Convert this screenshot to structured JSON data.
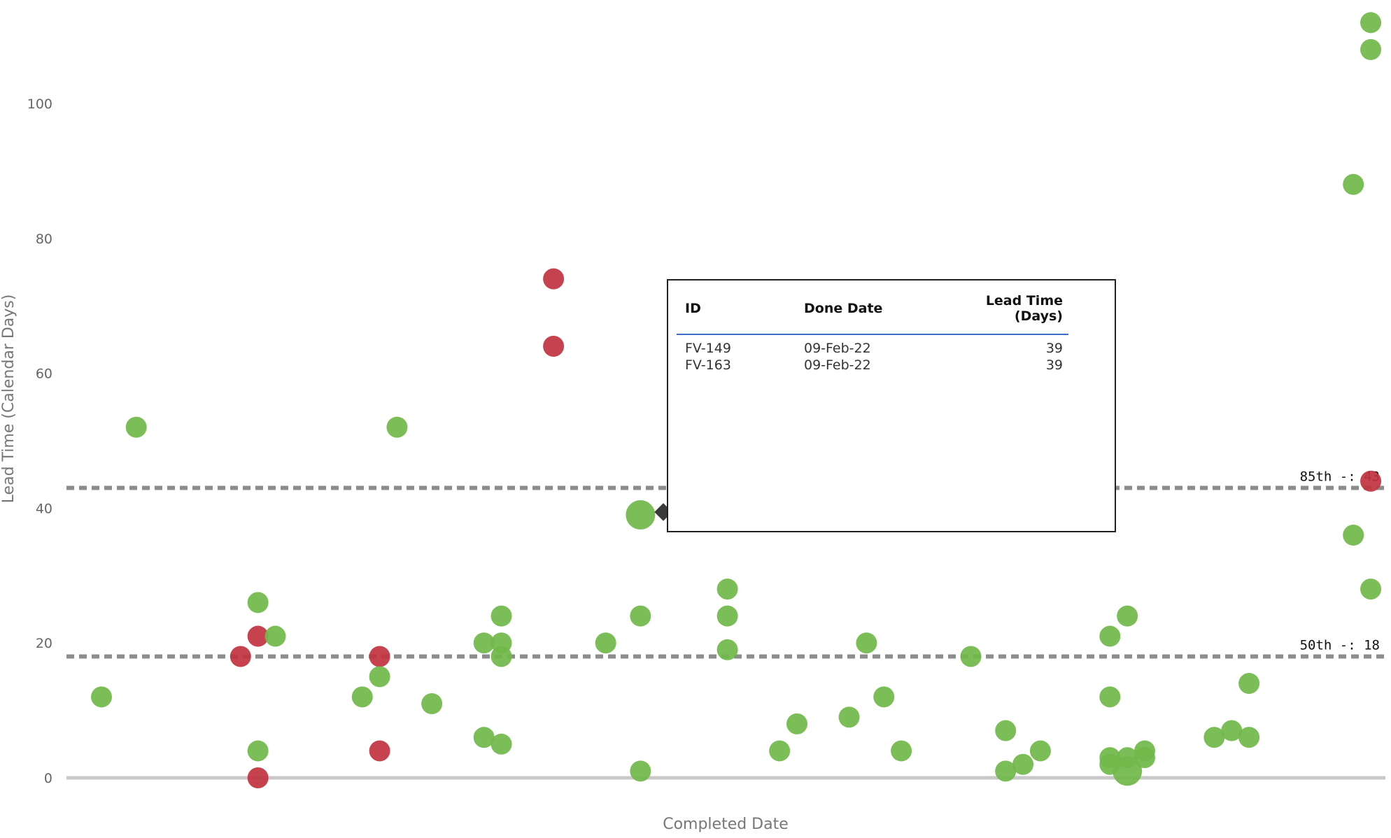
{
  "chart_data": {
    "type": "scatter",
    "xlabel": "Completed Date",
    "ylabel": "Lead Time (Calendar Days)",
    "yticks": [
      0,
      20,
      40,
      60,
      80,
      100
    ],
    "ylim": [
      0,
      115
    ],
    "reference_lines": [
      {
        "label": "85th -: 43",
        "value": 43
      },
      {
        "label": "50th -: 18",
        "value": 18
      }
    ],
    "colors": {
      "on_time": "#70b84a",
      "late": "#c0323f",
      "ref_line": "#8c8c8c",
      "baseline": "#c8c8c8"
    },
    "points": [
      {
        "x": 1,
        "y": 12,
        "c": "on_time"
      },
      {
        "x": 3,
        "y": 52,
        "c": "on_time"
      },
      {
        "x": 9,
        "y": 18,
        "c": "late"
      },
      {
        "x": 10,
        "y": 26,
        "c": "on_time"
      },
      {
        "x": 10,
        "y": 21,
        "c": "late"
      },
      {
        "x": 10,
        "y": 4,
        "c": "on_time"
      },
      {
        "x": 10,
        "y": 0,
        "c": "late"
      },
      {
        "x": 11,
        "y": 21,
        "c": "on_time"
      },
      {
        "x": 16,
        "y": 12,
        "c": "on_time"
      },
      {
        "x": 17,
        "y": 18,
        "c": "late"
      },
      {
        "x": 17,
        "y": 15,
        "c": "on_time"
      },
      {
        "x": 17,
        "y": 4,
        "c": "late"
      },
      {
        "x": 18,
        "y": 52,
        "c": "on_time"
      },
      {
        "x": 20,
        "y": 11,
        "c": "on_time"
      },
      {
        "x": 23,
        "y": 20,
        "c": "on_time"
      },
      {
        "x": 23,
        "y": 6,
        "c": "on_time"
      },
      {
        "x": 24,
        "y": 24,
        "c": "on_time"
      },
      {
        "x": 24,
        "y": 20,
        "c": "on_time"
      },
      {
        "x": 24,
        "y": 18,
        "c": "on_time"
      },
      {
        "x": 24,
        "y": 5,
        "c": "on_time"
      },
      {
        "x": 27,
        "y": 74,
        "c": "late"
      },
      {
        "x": 27,
        "y": 64,
        "c": "late"
      },
      {
        "x": 30,
        "y": 20,
        "c": "on_time"
      },
      {
        "x": 32,
        "y": 39,
        "c": "on_time",
        "big": true
      },
      {
        "x": 32,
        "y": 24,
        "c": "on_time"
      },
      {
        "x": 32,
        "y": 1,
        "c": "on_time"
      },
      {
        "x": 37,
        "y": 28,
        "c": "on_time"
      },
      {
        "x": 37,
        "y": 24,
        "c": "on_time"
      },
      {
        "x": 37,
        "y": 19,
        "c": "on_time"
      },
      {
        "x": 40,
        "y": 4,
        "c": "on_time"
      },
      {
        "x": 41,
        "y": 8,
        "c": "on_time"
      },
      {
        "x": 44,
        "y": 9,
        "c": "on_time"
      },
      {
        "x": 45,
        "y": 20,
        "c": "on_time"
      },
      {
        "x": 46,
        "y": 12,
        "c": "on_time"
      },
      {
        "x": 47,
        "y": 4,
        "c": "on_time"
      },
      {
        "x": 51,
        "y": 18,
        "c": "on_time"
      },
      {
        "x": 53,
        "y": 7,
        "c": "on_time"
      },
      {
        "x": 53,
        "y": 1,
        "c": "on_time"
      },
      {
        "x": 54,
        "y": 2,
        "c": "on_time"
      },
      {
        "x": 55,
        "y": 4,
        "c": "on_time"
      },
      {
        "x": 59,
        "y": 21,
        "c": "on_time"
      },
      {
        "x": 59,
        "y": 12,
        "c": "on_time"
      },
      {
        "x": 59,
        "y": 3,
        "c": "on_time"
      },
      {
        "x": 59,
        "y": 2,
        "c": "on_time"
      },
      {
        "x": 60,
        "y": 24,
        "c": "on_time"
      },
      {
        "x": 60,
        "y": 3,
        "c": "on_time"
      },
      {
        "x": 60,
        "y": 1,
        "c": "on_time",
        "big": true
      },
      {
        "x": 61,
        "y": 4,
        "c": "on_time"
      },
      {
        "x": 61,
        "y": 3,
        "c": "on_time"
      },
      {
        "x": 65,
        "y": 6,
        "c": "on_time"
      },
      {
        "x": 66,
        "y": 7,
        "c": "on_time"
      },
      {
        "x": 67,
        "y": 14,
        "c": "on_time"
      },
      {
        "x": 67,
        "y": 6,
        "c": "on_time"
      },
      {
        "x": 73,
        "y": 88,
        "c": "on_time"
      },
      {
        "x": 73,
        "y": 36,
        "c": "on_time"
      },
      {
        "x": 74,
        "y": 112,
        "c": "on_time"
      },
      {
        "x": 74,
        "y": 108,
        "c": "on_time"
      },
      {
        "x": 74,
        "y": 44,
        "c": "late"
      },
      {
        "x": 74,
        "y": 28,
        "c": "on_time"
      }
    ]
  },
  "tooltip": {
    "headers": {
      "id": "ID",
      "done_date": "Done Date",
      "lead_time": "Lead Time (Days)"
    },
    "rows": [
      {
        "id": "FV-149",
        "done_date": "09-Feb-22",
        "lead_time": "39"
      },
      {
        "id": "FV-163",
        "done_date": "09-Feb-22",
        "lead_time": "39"
      }
    ]
  }
}
